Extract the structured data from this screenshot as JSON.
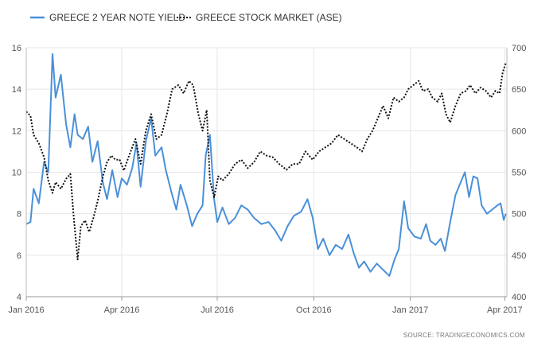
{
  "chart_data": {
    "type": "line",
    "legend_position": "top-left",
    "grid": true,
    "source": "SOURCE: TRADINGECONOMICS.COM",
    "x_ticks": [
      "Jan 2016",
      "Apr 2016",
      "Jul 2016",
      "Oct 2016",
      "Jan 2017",
      "Apr 2017"
    ],
    "x_domain": [
      "2016-01-01",
      "2017-04-03"
    ],
    "y_left": {
      "min": 4,
      "max": 16,
      "ticks": [
        4,
        6,
        8,
        10,
        12,
        14,
        16
      ]
    },
    "y_right": {
      "min": 400,
      "max": 700,
      "ticks": [
        400,
        450,
        500,
        550,
        600,
        650,
        700
      ]
    },
    "series": [
      {
        "name": "GREECE 2 YEAR NOTE YIELD",
        "axis": "left",
        "color": "#4a90d9",
        "style": "solid",
        "points": [
          [
            "2016-01-01",
            7.5
          ],
          [
            "2016-01-05",
            7.6
          ],
          [
            "2016-01-08",
            9.2
          ],
          [
            "2016-01-13",
            8.5
          ],
          [
            "2016-01-18",
            10.5
          ],
          [
            "2016-01-22",
            10.0
          ],
          [
            "2016-01-26",
            15.7
          ],
          [
            "2016-01-29",
            13.6
          ],
          [
            "2016-02-03",
            14.7
          ],
          [
            "2016-02-08",
            12.3
          ],
          [
            "2016-02-12",
            11.2
          ],
          [
            "2016-02-16",
            12.8
          ],
          [
            "2016-02-19",
            11.8
          ],
          [
            "2016-02-24",
            11.6
          ],
          [
            "2016-02-29",
            12.2
          ],
          [
            "2016-03-04",
            10.5
          ],
          [
            "2016-03-09",
            11.5
          ],
          [
            "2016-03-14",
            9.5
          ],
          [
            "2016-03-18",
            8.7
          ],
          [
            "2016-03-23",
            10.1
          ],
          [
            "2016-03-28",
            8.8
          ],
          [
            "2016-04-01",
            9.7
          ],
          [
            "2016-04-06",
            9.4
          ],
          [
            "2016-04-11",
            10.2
          ],
          [
            "2016-04-15",
            11.4
          ],
          [
            "2016-04-19",
            9.3
          ],
          [
            "2016-04-24",
            11.5
          ],
          [
            "2016-04-29",
            12.6
          ],
          [
            "2016-05-03",
            10.8
          ],
          [
            "2016-05-09",
            11.2
          ],
          [
            "2016-05-13",
            10.1
          ],
          [
            "2016-05-18",
            9.1
          ],
          [
            "2016-05-23",
            8.2
          ],
          [
            "2016-05-27",
            9.4
          ],
          [
            "2016-06-02",
            8.4
          ],
          [
            "2016-06-07",
            7.4
          ],
          [
            "2016-06-12",
            8.0
          ],
          [
            "2016-06-17",
            8.4
          ],
          [
            "2016-06-20",
            10.8
          ],
          [
            "2016-06-24",
            11.8
          ],
          [
            "2016-06-28",
            8.7
          ],
          [
            "2016-07-01",
            7.6
          ],
          [
            "2016-07-06",
            8.3
          ],
          [
            "2016-07-12",
            7.5
          ],
          [
            "2016-07-18",
            7.8
          ],
          [
            "2016-07-24",
            8.4
          ],
          [
            "2016-07-30",
            8.2
          ],
          [
            "2016-08-05",
            7.8
          ],
          [
            "2016-08-12",
            7.5
          ],
          [
            "2016-08-19",
            7.6
          ],
          [
            "2016-08-25",
            7.2
          ],
          [
            "2016-08-31",
            6.7
          ],
          [
            "2016-09-06",
            7.4
          ],
          [
            "2016-09-12",
            7.9
          ],
          [
            "2016-09-19",
            8.1
          ],
          [
            "2016-09-25",
            8.7
          ],
          [
            "2016-09-30",
            7.8
          ],
          [
            "2016-10-05",
            6.3
          ],
          [
            "2016-10-10",
            6.8
          ],
          [
            "2016-10-16",
            6.0
          ],
          [
            "2016-10-22",
            6.5
          ],
          [
            "2016-10-28",
            6.3
          ],
          [
            "2016-11-03",
            7.0
          ],
          [
            "2016-11-08",
            6.1
          ],
          [
            "2016-11-13",
            5.4
          ],
          [
            "2016-11-18",
            5.7
          ],
          [
            "2016-11-24",
            5.2
          ],
          [
            "2016-11-30",
            5.6
          ],
          [
            "2016-12-06",
            5.3
          ],
          [
            "2016-12-12",
            5.0
          ],
          [
            "2016-12-17",
            5.8
          ],
          [
            "2016-12-21",
            6.3
          ],
          [
            "2016-12-26",
            8.6
          ],
          [
            "2016-12-30",
            7.3
          ],
          [
            "2017-01-05",
            6.9
          ],
          [
            "2017-01-11",
            6.8
          ],
          [
            "2017-01-16",
            7.5
          ],
          [
            "2017-01-20",
            6.7
          ],
          [
            "2017-01-25",
            6.5
          ],
          [
            "2017-01-30",
            6.8
          ],
          [
            "2017-02-03",
            6.2
          ],
          [
            "2017-02-08",
            7.6
          ],
          [
            "2017-02-13",
            8.9
          ],
          [
            "2017-02-17",
            9.4
          ],
          [
            "2017-02-22",
            10.0
          ],
          [
            "2017-02-26",
            8.8
          ],
          [
            "2017-03-02",
            9.8
          ],
          [
            "2017-03-06",
            9.7
          ],
          [
            "2017-03-10",
            8.4
          ],
          [
            "2017-03-15",
            8.0
          ],
          [
            "2017-03-20",
            8.2
          ],
          [
            "2017-03-25",
            8.4
          ],
          [
            "2017-03-28",
            8.5
          ],
          [
            "2017-03-31",
            7.7
          ],
          [
            "2017-04-02",
            8.0
          ]
        ]
      },
      {
        "name": "GREECE STOCK MARKET (ASE)",
        "axis": "right",
        "color": "#111111",
        "style": "dotted",
        "points": [
          [
            "2016-01-01",
            623
          ],
          [
            "2016-01-05",
            618
          ],
          [
            "2016-01-08",
            595
          ],
          [
            "2016-01-13",
            585
          ],
          [
            "2016-01-18",
            568
          ],
          [
            "2016-01-22",
            540
          ],
          [
            "2016-01-26",
            525
          ],
          [
            "2016-01-29",
            538
          ],
          [
            "2016-02-03",
            530
          ],
          [
            "2016-02-08",
            542
          ],
          [
            "2016-02-12",
            548
          ],
          [
            "2016-02-15",
            500
          ],
          [
            "2016-02-19",
            445
          ],
          [
            "2016-02-22",
            485
          ],
          [
            "2016-02-26",
            492
          ],
          [
            "2016-03-01",
            478
          ],
          [
            "2016-03-05",
            495
          ],
          [
            "2016-03-09",
            515
          ],
          [
            "2016-03-14",
            545
          ],
          [
            "2016-03-18",
            562
          ],
          [
            "2016-03-22",
            570
          ],
          [
            "2016-03-26",
            565
          ],
          [
            "2016-03-30",
            565
          ],
          [
            "2016-04-03",
            552
          ],
          [
            "2016-04-08",
            570
          ],
          [
            "2016-04-14",
            590
          ],
          [
            "2016-04-19",
            560
          ],
          [
            "2016-04-24",
            600
          ],
          [
            "2016-04-29",
            620
          ],
          [
            "2016-05-04",
            590
          ],
          [
            "2016-05-09",
            595
          ],
          [
            "2016-05-14",
            620
          ],
          [
            "2016-05-19",
            650
          ],
          [
            "2016-05-25",
            655
          ],
          [
            "2016-05-30",
            645
          ],
          [
            "2016-06-04",
            660
          ],
          [
            "2016-06-08",
            655
          ],
          [
            "2016-06-13",
            620
          ],
          [
            "2016-06-17",
            600
          ],
          [
            "2016-06-21",
            625
          ],
          [
            "2016-06-24",
            540
          ],
          [
            "2016-06-28",
            520
          ],
          [
            "2016-07-02",
            545
          ],
          [
            "2016-07-06",
            540
          ],
          [
            "2016-07-12",
            548
          ],
          [
            "2016-07-18",
            560
          ],
          [
            "2016-07-24",
            565
          ],
          [
            "2016-07-30",
            555
          ],
          [
            "2016-08-05",
            562
          ],
          [
            "2016-08-11",
            575
          ],
          [
            "2016-08-17",
            570
          ],
          [
            "2016-08-23",
            568
          ],
          [
            "2016-08-29",
            560
          ],
          [
            "2016-09-05",
            553
          ],
          [
            "2016-09-11",
            560
          ],
          [
            "2016-09-17",
            560
          ],
          [
            "2016-09-23",
            575
          ],
          [
            "2016-09-30",
            565
          ],
          [
            "2016-10-06",
            575
          ],
          [
            "2016-10-12",
            580
          ],
          [
            "2016-10-18",
            585
          ],
          [
            "2016-10-24",
            595
          ],
          [
            "2016-10-30",
            590
          ],
          [
            "2016-11-05",
            585
          ],
          [
            "2016-11-11",
            580
          ],
          [
            "2016-11-16",
            575
          ],
          [
            "2016-11-21",
            590
          ],
          [
            "2016-11-26",
            600
          ],
          [
            "2016-12-01",
            615
          ],
          [
            "2016-12-06",
            630
          ],
          [
            "2016-12-11",
            615
          ],
          [
            "2016-12-16",
            640
          ],
          [
            "2016-12-21",
            635
          ],
          [
            "2016-12-26",
            640
          ],
          [
            "2016-12-30",
            650
          ],
          [
            "2017-01-04",
            655
          ],
          [
            "2017-01-09",
            660
          ],
          [
            "2017-01-13",
            648
          ],
          [
            "2017-01-18",
            650
          ],
          [
            "2017-01-22",
            640
          ],
          [
            "2017-01-27",
            635
          ],
          [
            "2017-01-31",
            645
          ],
          [
            "2017-02-04",
            620
          ],
          [
            "2017-02-08",
            610
          ],
          [
            "2017-02-13",
            630
          ],
          [
            "2017-02-18",
            645
          ],
          [
            "2017-02-23",
            648
          ],
          [
            "2017-02-27",
            655
          ],
          [
            "2017-03-04",
            645
          ],
          [
            "2017-03-09",
            652
          ],
          [
            "2017-03-14",
            648
          ],
          [
            "2017-03-19",
            640
          ],
          [
            "2017-03-23",
            648
          ],
          [
            "2017-03-27",
            645
          ],
          [
            "2017-03-30",
            670
          ],
          [
            "2017-04-02",
            682
          ]
        ]
      }
    ]
  }
}
